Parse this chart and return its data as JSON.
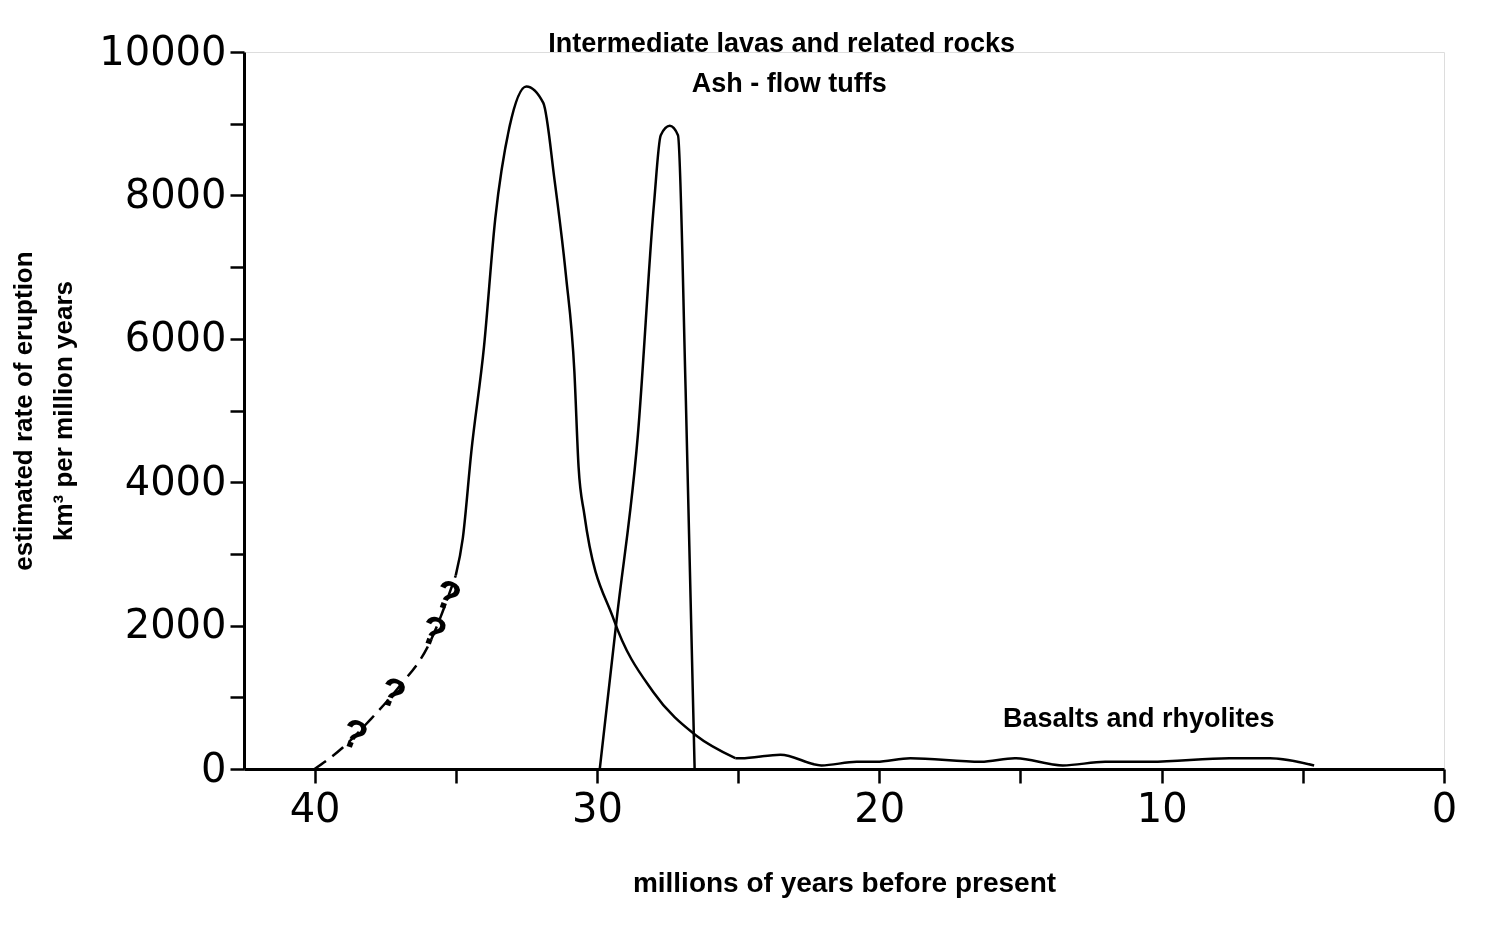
{
  "chart_data": {
    "type": "line",
    "xlabel": "millions of  years before present",
    "ylabel": [
      "estimated rate of eruption",
      "km³ per million years"
    ],
    "xlim": [
      42.5,
      0
    ],
    "ylim": [
      0,
      10000
    ],
    "xticks": [
      40,
      {
        "value": 35,
        "label": null
      },
      30,
      {
        "value": 25,
        "label": null
      },
      20,
      {
        "value": 15,
        "label": null
      },
      10,
      {
        "value": 5,
        "label": null
      },
      0
    ],
    "yticks": [
      0,
      {
        "value": 1000,
        "label": null
      },
      2000,
      {
        "value": 3000,
        "label": null
      },
      4000,
      {
        "value": 5000,
        "label": null
      },
      6000,
      {
        "value": 7000,
        "label": null
      },
      8000,
      {
        "value": 9000,
        "label": null
      },
      10000
    ],
    "grid": false,
    "marker": "none",
    "series": [
      {
        "color": "#000000",
        "line_style": "dashed",
        "x": [
          40,
          39,
          38,
          37,
          36,
          35
        ],
        "values": [
          0,
          300,
          700,
          1150,
          1700,
          2700
        ]
      },
      {
        "color": "#000000",
        "line_style": "solid",
        "x": [
          35,
          34.75,
          34.45,
          34.0,
          33.6,
          33.1,
          32.5,
          31.9,
          31.5,
          31.1,
          30.8,
          30.65,
          30.45,
          29.4,
          28.0,
          26.5,
          25.1
        ],
        "values": [
          2700,
          3220,
          4420,
          5890,
          7680,
          8950,
          9520,
          9290,
          8210,
          6890,
          5550,
          4210,
          3560,
          2080,
          1070,
          470,
          150
        ]
      },
      {
        "color": "#000000",
        "line_style": "solid",
        "x": [
          29.9,
          29.3,
          28.55,
          27.98,
          27.74,
          27.42,
          27.13,
          26.86,
          26.54
        ],
        "values": [
          0,
          2090,
          4660,
          7880,
          8840,
          8970,
          8840,
          5300,
          0
        ]
      },
      {
        "color": "#000000",
        "line_style": "solid",
        "x": [
          25.1,
          24.9,
          23.5,
          22.05,
          20.8,
          20.1,
          18.9,
          16.4,
          15.2,
          13.5,
          12.0,
          10.4,
          7.6,
          6.2,
          4.6
        ],
        "values": [
          150,
          150,
          200,
          50,
          100,
          100,
          150,
          100,
          150,
          50,
          100,
          100,
          150,
          150,
          50
        ]
      }
    ],
    "annotations": [
      {
        "text": "Intermediate lavas and related rocks",
        "x": 32.5,
        "y": 9520
      },
      {
        "text": "Ash - flow tuffs",
        "x": 27.42,
        "y": 8970
      },
      {
        "text": "Basalts and rhyolites",
        "x": 16.4,
        "y": 110
      },
      {
        "text": "?",
        "x": 38.6,
        "y": 460
      },
      {
        "text": "?",
        "x": 37.25,
        "y": 1040
      },
      {
        "text": "?",
        "x": 35.8,
        "y": 1900
      },
      {
        "text": "?",
        "x": 35.3,
        "y": 2400
      }
    ]
  }
}
